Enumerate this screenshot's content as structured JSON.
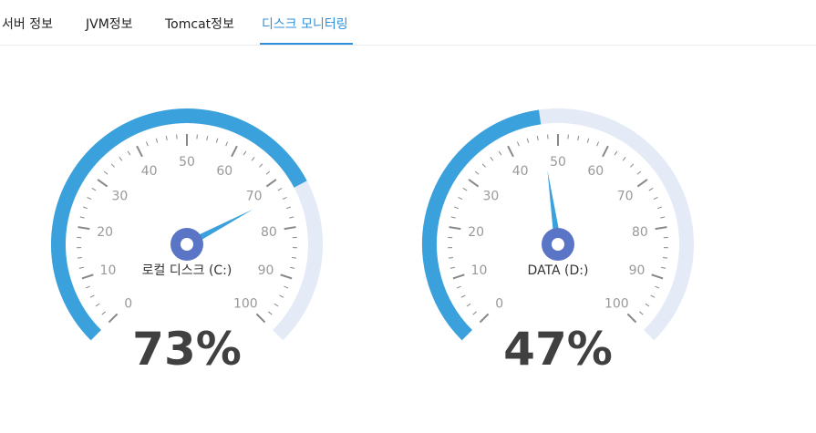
{
  "tabs": [
    {
      "label": "서버 정보",
      "active": false
    },
    {
      "label": "JVM정보",
      "active": false
    },
    {
      "label": "Tomcat정보",
      "active": false
    },
    {
      "label": "디스크 모니터링",
      "active": true
    }
  ],
  "colors": {
    "accent": "#2f8fd8",
    "progress": "#3aa1dc",
    "track": "#e4eaf6",
    "needle": "#3aa1dc",
    "hub": "#5a74c6",
    "value_text": "#404040",
    "tick": "#888888",
    "tick_label": "#999999"
  },
  "gauges": [
    {
      "name": "로컬 디스크 (C:)",
      "value": 73,
      "value_text": "73%",
      "min": 0,
      "max": 100,
      "tick_labels": [
        "0",
        "10",
        "20",
        "30",
        "40",
        "50",
        "60",
        "70",
        "80",
        "90",
        "100"
      ]
    },
    {
      "name": "DATA (D:)",
      "value": 47,
      "value_text": "47%",
      "min": 0,
      "max": 100,
      "tick_labels": [
        "0",
        "10",
        "20",
        "30",
        "40",
        "50",
        "60",
        "70",
        "80",
        "90",
        "100"
      ]
    }
  ]
}
